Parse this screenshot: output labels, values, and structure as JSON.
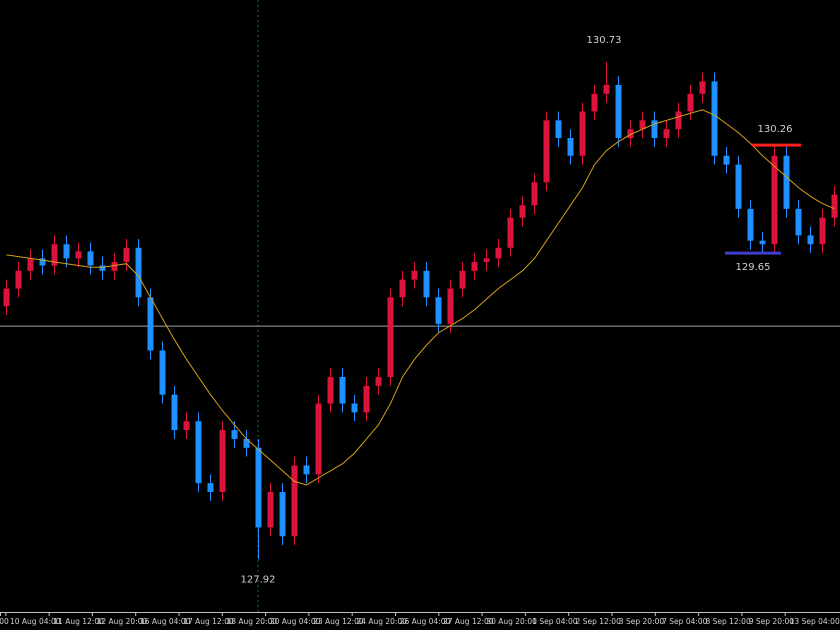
{
  "chart_data": {
    "type": "candlestick",
    "ylim": [
      127.69,
      131.08
    ],
    "up_color": "#dc143c",
    "down_color": "#1e90ff",
    "ma_color": "#d4a017",
    "open": [
      129.35,
      129.45,
      129.55,
      129.62,
      129.58,
      129.7,
      129.62,
      129.66,
      129.58,
      129.55,
      129.6,
      129.68,
      129.4,
      129.1,
      128.85,
      128.65,
      128.7,
      128.35,
      128.3,
      128.65,
      128.6,
      128.55,
      128.1,
      128.3,
      128.05,
      128.45,
      128.4,
      128.8,
      128.95,
      128.8,
      128.75,
      128.9,
      128.95,
      129.4,
      129.5,
      129.55,
      129.4,
      129.25,
      129.45,
      129.55,
      129.6,
      129.62,
      129.68,
      129.85,
      129.92,
      130.05,
      130.4,
      130.3,
      130.2,
      130.45,
      130.55,
      130.6,
      130.3,
      130.35,
      130.4,
      130.3,
      130.35,
      130.45,
      130.55,
      130.62,
      130.2,
      130.15,
      129.9,
      129.72,
      129.7,
      130.2,
      129.9,
      129.75,
      129.7,
      129.85
    ],
    "high": [
      129.5,
      129.6,
      129.67,
      129.67,
      129.75,
      129.75,
      129.71,
      129.71,
      129.63,
      129.65,
      129.73,
      129.73,
      129.45,
      129.15,
      128.9,
      128.75,
      128.75,
      128.4,
      128.7,
      128.7,
      128.65,
      128.6,
      128.35,
      128.35,
      128.5,
      128.5,
      128.85,
      129.0,
      129.0,
      128.85,
      128.95,
      129.0,
      129.45,
      129.55,
      129.6,
      129.6,
      129.45,
      129.5,
      129.6,
      129.65,
      129.67,
      129.73,
      129.9,
      129.97,
      130.1,
      130.45,
      130.45,
      130.35,
      130.5,
      130.6,
      130.73,
      130.65,
      130.4,
      130.45,
      130.45,
      130.4,
      130.5,
      130.6,
      130.67,
      130.67,
      130.25,
      130.2,
      129.95,
      129.77,
      130.26,
      130.25,
      129.95,
      129.8,
      129.9,
      130.03
    ],
    "low": [
      129.3,
      129.4,
      129.5,
      129.53,
      129.53,
      129.57,
      129.57,
      129.53,
      129.5,
      129.5,
      129.55,
      129.35,
      129.05,
      128.8,
      128.6,
      128.6,
      128.3,
      128.25,
      128.25,
      128.55,
      128.5,
      127.92,
      128.05,
      128.0,
      128.0,
      128.35,
      128.35,
      128.75,
      128.75,
      128.7,
      128.7,
      128.85,
      128.9,
      129.35,
      129.45,
      129.35,
      129.2,
      129.2,
      129.4,
      129.5,
      129.55,
      129.57,
      129.63,
      129.8,
      129.87,
      130.0,
      130.25,
      130.15,
      130.15,
      130.4,
      130.5,
      130.25,
      130.25,
      130.3,
      130.25,
      130.25,
      130.3,
      130.4,
      130.5,
      130.15,
      130.1,
      129.85,
      129.67,
      129.65,
      129.65,
      129.85,
      129.7,
      129.65,
      129.65,
      129.8
    ],
    "close": [
      129.45,
      129.55,
      129.62,
      129.58,
      129.7,
      129.62,
      129.66,
      129.58,
      129.55,
      129.6,
      129.68,
      129.4,
      129.1,
      128.85,
      128.65,
      128.7,
      128.35,
      128.3,
      128.65,
      128.6,
      128.55,
      128.1,
      128.3,
      128.05,
      128.45,
      128.4,
      128.8,
      128.95,
      128.8,
      128.75,
      128.9,
      128.95,
      129.4,
      129.5,
      129.55,
      129.4,
      129.25,
      129.45,
      129.55,
      129.6,
      129.62,
      129.68,
      129.85,
      129.92,
      130.05,
      130.4,
      130.3,
      130.2,
      130.45,
      130.55,
      130.6,
      130.3,
      130.35,
      130.4,
      130.3,
      130.35,
      130.45,
      130.55,
      130.62,
      130.2,
      130.15,
      129.9,
      129.72,
      129.7,
      130.2,
      129.9,
      129.75,
      129.7,
      129.85,
      129.98
    ],
    "ma": [
      129.64,
      129.63,
      129.62,
      129.61,
      129.6,
      129.59,
      129.58,
      129.57,
      129.57,
      129.58,
      129.59,
      129.52,
      129.4,
      129.28,
      129.16,
      129.05,
      128.95,
      128.85,
      128.76,
      128.68,
      128.6,
      128.54,
      128.48,
      128.42,
      128.36,
      128.34,
      128.38,
      128.42,
      128.46,
      128.52,
      128.6,
      128.68,
      128.8,
      128.95,
      129.05,
      129.13,
      129.2,
      129.24,
      129.28,
      129.33,
      129.39,
      129.45,
      129.5,
      129.55,
      129.62,
      129.72,
      129.82,
      129.92,
      130.02,
      130.15,
      130.23,
      130.28,
      130.32,
      130.35,
      130.38,
      130.4,
      130.42,
      130.44,
      130.46,
      130.43,
      130.38,
      130.33,
      130.27,
      130.2,
      130.14,
      130.08,
      130.02,
      129.97,
      129.93,
      129.9
    ],
    "price_labels": [
      130.73,
      127.92,
      130.26,
      129.65
    ],
    "resistance_line": {
      "value": 130.26,
      "color": "#ff2020"
    },
    "support_line": {
      "value": 129.65,
      "color": "#4040d0"
    },
    "hline": {
      "value": 129.24,
      "color": "#a0a0a0"
    },
    "x_labels": [
      "00",
      "10 Aug 04:00",
      "11 Aug 12:00",
      "12 Aug 20:00",
      "16 Aug 04:00",
      "17 Aug 12:00",
      "18 Aug 20:00",
      "20 Aug 04:00",
      "23 Aug 12:00",
      "24 Aug 20:00",
      "26 Aug 04:00",
      "27 Aug 12:00",
      "30 Aug 20:00",
      "1 Sep 04:00",
      "2 Sep 12:00",
      "3 Sep 20:00",
      "7 Sep 04:00",
      "8 Sep 12:00",
      "9 Sep 20:00",
      "13 Sep 04:00"
    ]
  }
}
